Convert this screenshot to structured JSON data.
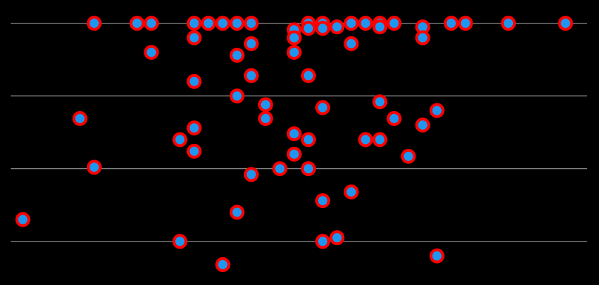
{
  "chart_data": {
    "type": "scatter",
    "x": [
      5,
      8,
      9,
      12,
      13,
      14,
      15,
      16,
      19,
      20,
      21,
      20,
      21,
      22,
      23,
      24,
      25,
      25,
      26,
      28,
      30,
      31,
      34,
      38,
      12,
      19,
      28,
      16,
      23,
      9,
      15,
      19,
      16,
      20,
      12,
      15,
      17,
      21,
      25,
      29,
      4,
      17,
      26,
      28,
      12,
      19,
      11,
      20,
      24,
      25,
      12,
      19,
      27,
      5,
      18,
      20,
      16,
      23,
      21,
      15,
      0,
      11,
      21,
      22,
      29,
      14
    ],
    "series": [
      {
        "color": "#1e96f0",
        "edgecolor": "#ff0000",
        "values": [
          3,
          3,
          3,
          3,
          3,
          3,
          3,
          3,
          2.91,
          3,
          3,
          2.93,
          2.93,
          2.95,
          3,
          3,
          3,
          2.95,
          3,
          2.95,
          3,
          3,
          3,
          3,
          2.8,
          2.8,
          2.8,
          2.72,
          2.72,
          2.6,
          2.56,
          2.6,
          2.28,
          2.28,
          2.2,
          2,
          1.88,
          1.84,
          1.92,
          1.8,
          1.69,
          1.69,
          1.69,
          1.6,
          1.56,
          1.48,
          1.4,
          1.4,
          1.4,
          1.4,
          1.24,
          1.2,
          1.17,
          1.02,
          1,
          1,
          0.92,
          0.68,
          0.56,
          0.4,
          0.3,
          0,
          0,
          0.05,
          -0.2,
          -0.32
        ]
      }
    ],
    "xlim": [
      -0.85,
      39.5
    ],
    "ylim": [
      -0.6,
      3.32
    ],
    "yticks": [
      0,
      1,
      2,
      3
    ],
    "grid": true
  }
}
